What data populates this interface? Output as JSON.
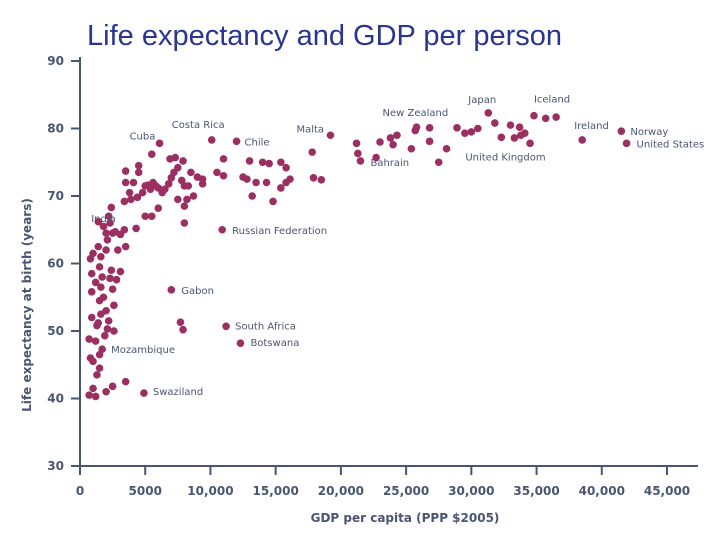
{
  "chart_data": {
    "type": "scatter",
    "title": "Life expectancy and GDP per person",
    "xlabel": "GDP per capita (PPP $2005)",
    "ylabel": "Life expectancy at birth (years)",
    "xlim": [
      0,
      45000
    ],
    "ylim": [
      30,
      90
    ],
    "xticks": [
      0,
      5000,
      10000,
      15000,
      20000,
      25000,
      30000,
      35000,
      40000,
      45000
    ],
    "xtick_labels": [
      "0",
      "5000",
      "10,000",
      "15,000",
      "20,000",
      "25,000",
      "30,000",
      "35,000",
      "40,000",
      "45,000"
    ],
    "yticks": [
      30,
      40,
      50,
      60,
      70,
      80,
      90
    ],
    "ytick_labels": [
      "30",
      "40",
      "50",
      "60",
      "70",
      "80",
      "90"
    ],
    "grid": false,
    "marker_color": "#9b2f62",
    "axis_color": "#4a5572",
    "title_color": "#2a3590",
    "labeled_points": [
      {
        "label": "Cuba",
        "x": 6100,
        "y": 77.8
      },
      {
        "label": "Costa Rica",
        "x": 10100,
        "y": 78.3
      },
      {
        "label": "Chile",
        "x": 12000,
        "y": 78.1
      },
      {
        "label": "Malta",
        "x": 19200,
        "y": 79.0
      },
      {
        "label": "India",
        "x": 2700,
        "y": 64.7
      },
      {
        "label": "Russian Federation",
        "x": 10900,
        "y": 65.0
      },
      {
        "label": "Gabon",
        "x": 7000,
        "y": 56.1
      },
      {
        "label": "South Africa",
        "x": 11200,
        "y": 50.7
      },
      {
        "label": "Botswana",
        "x": 12300,
        "y": 48.2
      },
      {
        "label": "Mozambique",
        "x": 1700,
        "y": 47.3
      },
      {
        "label": "Swaziland",
        "x": 4900,
        "y": 40.8
      },
      {
        "label": "New Zealand",
        "x": 25800,
        "y": 80.2
      },
      {
        "label": "Bahrain",
        "x": 21500,
        "y": 75.2
      },
      {
        "label": "Japan",
        "x": 31300,
        "y": 82.3
      },
      {
        "label": "United Kingdom",
        "x": 32300,
        "y": 78.7
      },
      {
        "label": "Iceland",
        "x": 34800,
        "y": 81.9
      },
      {
        "label": "Ireland",
        "x": 38500,
        "y": 78.3
      },
      {
        "label": "Norway",
        "x": 41500,
        "y": 79.6
      },
      {
        "label": "United States",
        "x": 41900,
        "y": 77.8
      }
    ],
    "points": [
      [
        700,
        40.5
      ],
      [
        1200,
        40.3
      ],
      [
        1000,
        41.5
      ],
      [
        2000,
        41.0
      ],
      [
        2500,
        41.8
      ],
      [
        3500,
        42.5
      ],
      [
        1300,
        43.5
      ],
      [
        1500,
        44.5
      ],
      [
        800,
        46.0
      ],
      [
        1000,
        45.5
      ],
      [
        1500,
        46.5
      ],
      [
        1200,
        48.5
      ],
      [
        700,
        48.8
      ],
      [
        1900,
        49.3
      ],
      [
        1300,
        50.8
      ],
      [
        2100,
        50.3
      ],
      [
        2600,
        50.0
      ],
      [
        1400,
        51.2
      ],
      [
        900,
        52.0
      ],
      [
        2200,
        51.5
      ],
      [
        1600,
        52.5
      ],
      [
        2000,
        53.0
      ],
      [
        1500,
        54.5
      ],
      [
        2600,
        53.8
      ],
      [
        1800,
        55.0
      ],
      [
        900,
        55.8
      ],
      [
        1600,
        56.5
      ],
      [
        2500,
        56.2
      ],
      [
        1200,
        57.2
      ],
      [
        1700,
        58.0
      ],
      [
        2300,
        57.8
      ],
      [
        2800,
        57.6
      ],
      [
        900,
        58.5
      ],
      [
        1500,
        59.5
      ],
      [
        2400,
        59.0
      ],
      [
        3100,
        58.8
      ],
      [
        800,
        60.7
      ],
      [
        1000,
        61.5
      ],
      [
        1600,
        61.0
      ],
      [
        2000,
        62.0
      ],
      [
        2900,
        62.0
      ],
      [
        1400,
        62.5
      ],
      [
        3500,
        62.5
      ],
      [
        2100,
        63.5
      ],
      [
        2500,
        64.5
      ],
      [
        3100,
        64.3
      ],
      [
        2000,
        64.5
      ],
      [
        1800,
        65.5
      ],
      [
        2300,
        66.0
      ],
      [
        3400,
        65.0
      ],
      [
        2200,
        67.0
      ],
      [
        1400,
        66.2
      ],
      [
        2400,
        68.3
      ],
      [
        4300,
        65.2
      ],
      [
        3400,
        69.2
      ],
      [
        3900,
        69.5
      ],
      [
        5000,
        67.0
      ],
      [
        5500,
        67.0
      ],
      [
        4400,
        69.8
      ],
      [
        3800,
        70.5
      ],
      [
        4800,
        70.5
      ],
      [
        3500,
        72.0
      ],
      [
        4100,
        72.0
      ],
      [
        4500,
        74.5
      ],
      [
        3500,
        73.7
      ],
      [
        4500,
        73.5
      ],
      [
        5500,
        76.2
      ],
      [
        5000,
        71.5
      ],
      [
        5400,
        71.0
      ],
      [
        5800,
        71.5
      ],
      [
        6000,
        71.2
      ],
      [
        6300,
        70.5
      ],
      [
        6500,
        71.0
      ],
      [
        5600,
        72.0
      ],
      [
        5200,
        71.6
      ],
      [
        6800,
        71.8
      ],
      [
        6900,
        75.5
      ],
      [
        7300,
        75.7
      ],
      [
        7500,
        74.2
      ],
      [
        7900,
        75.2
      ],
      [
        7200,
        73.5
      ],
      [
        7000,
        72.7
      ],
      [
        7800,
        72.3
      ],
      [
        8000,
        71.5
      ],
      [
        8300,
        71.5
      ],
      [
        8500,
        73.5
      ],
      [
        9400,
        72.5
      ],
      [
        9400,
        71.8
      ],
      [
        8700,
        70.0
      ],
      [
        8200,
        69.5
      ],
      [
        7500,
        69.5
      ],
      [
        8000,
        68.5
      ],
      [
        6000,
        68.2
      ],
      [
        8000,
        66.0
      ],
      [
        9000,
        72.8
      ],
      [
        11000,
        75.5
      ],
      [
        11000,
        73.0
      ],
      [
        10500,
        73.5
      ],
      [
        12500,
        72.8
      ],
      [
        13500,
        72.0
      ],
      [
        12800,
        72.5
      ],
      [
        13200,
        70.0
      ],
      [
        13000,
        75.2
      ],
      [
        14000,
        75.0
      ],
      [
        14500,
        74.8
      ],
      [
        14300,
        72.0
      ],
      [
        14800,
        69.2
      ],
      [
        15400,
        75.0
      ],
      [
        15800,
        74.2
      ],
      [
        16100,
        72.5
      ],
      [
        15400,
        71.2
      ],
      [
        15800,
        72.0
      ],
      [
        17800,
        76.5
      ],
      [
        17900,
        72.7
      ],
      [
        18500,
        72.4
      ],
      [
        21200,
        77.8
      ],
      [
        21300,
        76.3
      ],
      [
        22700,
        75.7
      ],
      [
        23000,
        78.0
      ],
      [
        23800,
        78.6
      ],
      [
        24300,
        79.0
      ],
      [
        24000,
        77.6
      ],
      [
        25700,
        79.7
      ],
      [
        25400,
        77.0
      ],
      [
        26800,
        80.1
      ],
      [
        26800,
        78.1
      ],
      [
        27500,
        75.0
      ],
      [
        28100,
        77.0
      ],
      [
        28900,
        80.1
      ],
      [
        29500,
        79.3
      ],
      [
        30000,
        79.5
      ],
      [
        30500,
        80.0
      ],
      [
        31800,
        80.8
      ],
      [
        33000,
        80.5
      ],
      [
        33300,
        78.6
      ],
      [
        33700,
        80.2
      ],
      [
        33800,
        79.0
      ],
      [
        34100,
        79.3
      ],
      [
        34500,
        77.8
      ],
      [
        35700,
        81.5
      ],
      [
        36500,
        81.7
      ],
      [
        7700,
        51.3
      ],
      [
        7900,
        50.2
      ]
    ]
  }
}
